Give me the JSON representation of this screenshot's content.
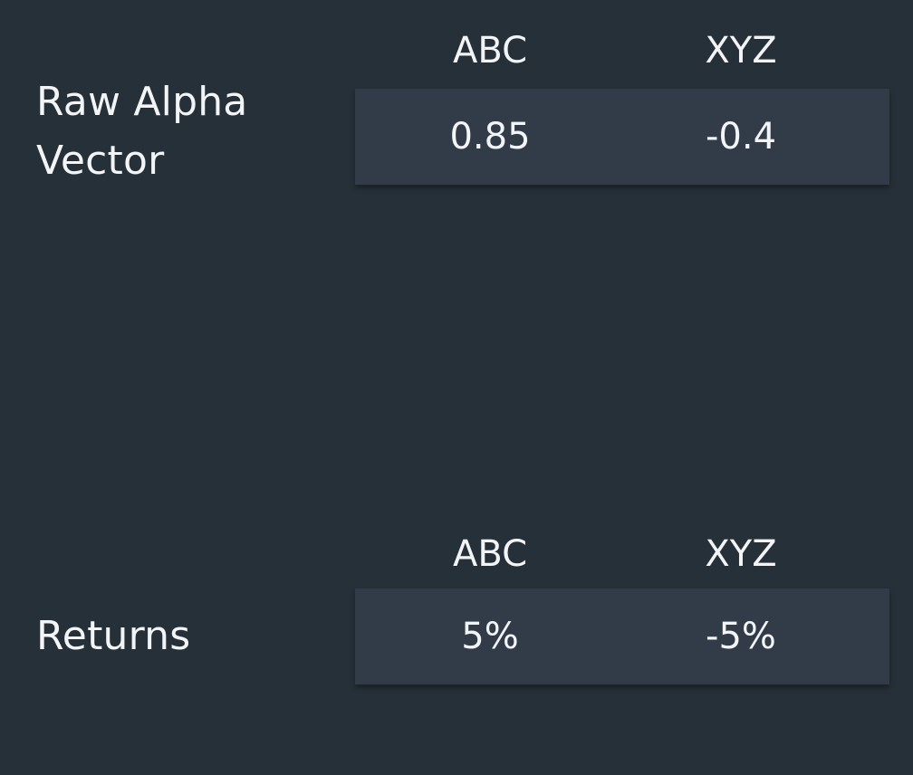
{
  "tables": [
    {
      "label": "Raw Alpha\nVector",
      "columns": [
        "ABC",
        "XYZ"
      ],
      "values": [
        "0.85",
        "-0.4"
      ]
    },
    {
      "label": "Returns",
      "columns": [
        "ABC",
        "XYZ"
      ],
      "values": [
        "5%",
        "-5%"
      ]
    }
  ],
  "colors": {
    "background": "#263039",
    "cell_background": "#313c48",
    "text": "#f2f4f6"
  }
}
